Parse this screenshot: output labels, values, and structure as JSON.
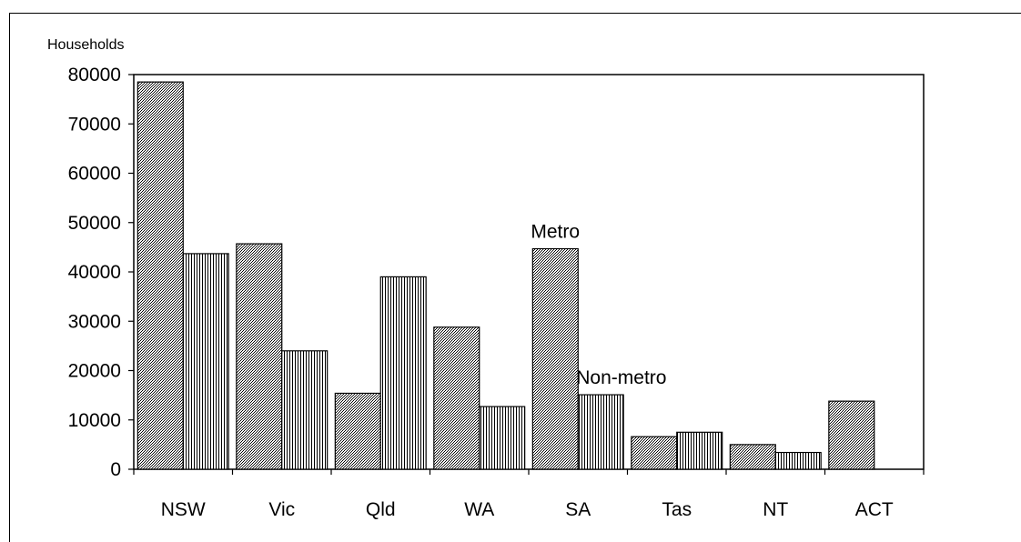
{
  "chart_data": {
    "type": "bar",
    "title": "",
    "ylabel": "Households",
    "xlabel": "",
    "ylim": [
      0,
      80000
    ],
    "yticks": [
      0,
      10000,
      20000,
      30000,
      40000,
      50000,
      60000,
      70000,
      80000
    ],
    "categories": [
      "NSW",
      "Vic",
      "Qld",
      "WA",
      "SA",
      "Tas",
      "NT",
      "ACT"
    ],
    "series": [
      {
        "name": "Metro",
        "values": [
          78500,
          45700,
          15400,
          28800,
          44700,
          6600,
          5000,
          13800
        ]
      },
      {
        "name": "Non-metro",
        "values": [
          43700,
          24000,
          39000,
          12700,
          15100,
          7500,
          3400,
          0
        ]
      }
    ],
    "annotations": [
      {
        "text": "Metro",
        "series": "Metro",
        "category": "SA"
      },
      {
        "text": "Non-metro",
        "series": "Non-metro",
        "category": "SA"
      }
    ],
    "grid": false,
    "legend": "none"
  },
  "colors": {
    "metro_hatch": "#000000",
    "nonmetro_hatch": "#000000",
    "background": "#ffffff"
  }
}
